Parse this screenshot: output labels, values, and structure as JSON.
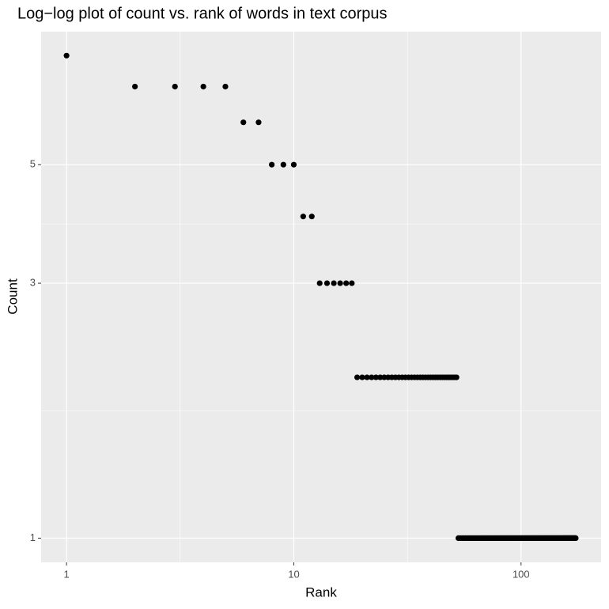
{
  "chart_data": {
    "type": "scatter",
    "title": "Log−log plot of count vs. rank of words in text corpus",
    "x_label": "Rank",
    "y_label": "Count",
    "log_x": true,
    "log_y": true,
    "grid": true,
    "minor_grid": true,
    "color": "#000000",
    "xlim": [
      0.773,
      225
    ],
    "ylim": [
      0.901,
      8.87
    ],
    "xticks": [
      1,
      10,
      100
    ],
    "yticks": [
      1,
      3,
      5
    ],
    "x": [
      1,
      2,
      3,
      4,
      5,
      6,
      7,
      8,
      9,
      10,
      11,
      12,
      13,
      14,
      15,
      16,
      17,
      18,
      19,
      20,
      21,
      22,
      23,
      24,
      25,
      26,
      27,
      28,
      29,
      30,
      31,
      32,
      33,
      34,
      35,
      36,
      37,
      38,
      39,
      40,
      41,
      42,
      43,
      44,
      45,
      46,
      47,
      48,
      49,
      50,
      51,
      52,
      53,
      54,
      55,
      56,
      57,
      58,
      59,
      60,
      61,
      62,
      63,
      64,
      65,
      66,
      67,
      68,
      69,
      70,
      71,
      72,
      73,
      74,
      75,
      76,
      77,
      78,
      79,
      80,
      81,
      82,
      83,
      84,
      85,
      86,
      87,
      88,
      89,
      90,
      91,
      92,
      93,
      94,
      95,
      96,
      97,
      98,
      99,
      100,
      101,
      102,
      103,
      104,
      105,
      106,
      107,
      108,
      109,
      110,
      111,
      112,
      113,
      114,
      115,
      116,
      117,
      118,
      119,
      120,
      121,
      122,
      123,
      124,
      125,
      126,
      127,
      128,
      129,
      130,
      131,
      132,
      133,
      134,
      135,
      136,
      137,
      138,
      139,
      140,
      141,
      142,
      143,
      144,
      145,
      146,
      147,
      148,
      149,
      150,
      151,
      152,
      153,
      154,
      155,
      156,
      157,
      158,
      159,
      160,
      161,
      162,
      163,
      164,
      165,
      166,
      167,
      168,
      169,
      170,
      171,
      172,
      173,
      174
    ],
    "values": [
      8,
      7,
      7,
      7,
      7,
      6,
      6,
      5,
      5,
      5,
      4,
      4,
      3,
      3,
      3,
      3,
      3,
      3,
      2,
      2,
      2,
      2,
      2,
      2,
      2,
      2,
      2,
      2,
      2,
      2,
      2,
      2,
      2,
      2,
      2,
      2,
      2,
      2,
      2,
      2,
      2,
      2,
      2,
      2,
      2,
      2,
      2,
      2,
      2,
      2,
      2,
      2,
      1,
      1,
      1,
      1,
      1,
      1,
      1,
      1,
      1,
      1,
      1,
      1,
      1,
      1,
      1,
      1,
      1,
      1,
      1,
      1,
      1,
      1,
      1,
      1,
      1,
      1,
      1,
      1,
      1,
      1,
      1,
      1,
      1,
      1,
      1,
      1,
      1,
      1,
      1,
      1,
      1,
      1,
      1,
      1,
      1,
      1,
      1,
      1,
      1,
      1,
      1,
      1,
      1,
      1,
      1,
      1,
      1,
      1,
      1,
      1,
      1,
      1,
      1,
      1,
      1,
      1,
      1,
      1,
      1,
      1,
      1,
      1,
      1,
      1,
      1,
      1,
      1,
      1,
      1,
      1,
      1,
      1,
      1,
      1,
      1,
      1,
      1,
      1,
      1,
      1,
      1,
      1,
      1,
      1,
      1,
      1,
      1,
      1,
      1,
      1,
      1,
      1,
      1,
      1,
      1,
      1,
      1,
      1,
      1,
      1,
      1,
      1,
      1,
      1,
      1,
      1,
      1,
      1,
      1,
      1,
      1,
      1
    ]
  }
}
